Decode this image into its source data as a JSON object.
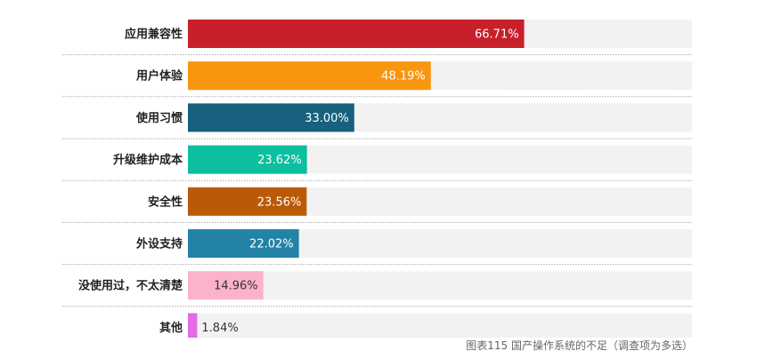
{
  "chart_data": {
    "type": "bar",
    "orientation": "horizontal",
    "title": "",
    "xlabel": "",
    "ylabel": "",
    "xlim": [
      0,
      100
    ],
    "value_suffix": "%",
    "categories": [
      "应用兼容性",
      "用户体验",
      "使用习惯",
      "升级维护成本",
      "安全性",
      "外设支持",
      "没使用过，不太清楚",
      "其他"
    ],
    "values": [
      66.71,
      48.19,
      33.0,
      23.62,
      23.56,
      22.02,
      14.96,
      1.84
    ],
    "value_labels": [
      "66.71%",
      "48.19%",
      "33.00%",
      "23.62%",
      "23.56%",
      "22.02%",
      "14.96%",
      "1.84%"
    ],
    "colors": [
      "#c8202a",
      "#f8960f",
      "#17607e",
      "#0bbf9f",
      "#bb5a06",
      "#2383a6",
      "#fcb3c9",
      "#e56be4"
    ],
    "label_colors": [
      "#ffffff",
      "#ffffff",
      "#ffffff",
      "#ffffff",
      "#ffffff",
      "#ffffff",
      "#333333",
      "#333333"
    ],
    "label_position": [
      "inside",
      "inside",
      "inside",
      "inside",
      "inside",
      "inside",
      "inside",
      "outside"
    ],
    "track_color": "#f2f2f2",
    "separator_color": "#aaaaaa"
  },
  "caption": "图表115 国产操作系统的不足（调查项为多选）"
}
